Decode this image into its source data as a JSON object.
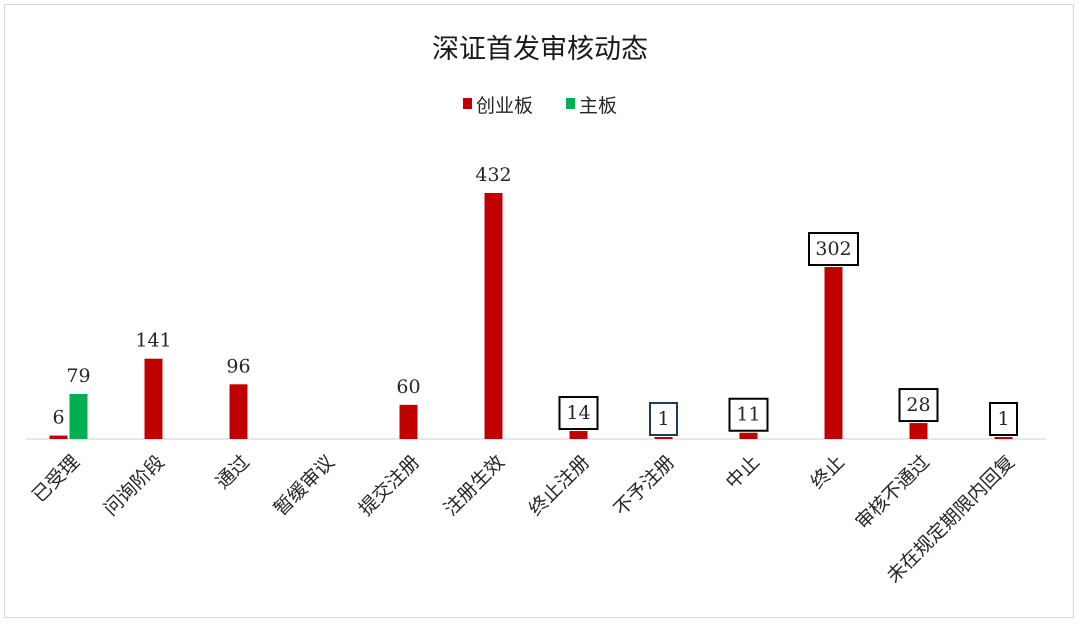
{
  "chart_data": {
    "type": "bar",
    "title": "深证首发审核动态",
    "categories": [
      "已受理",
      "问询阶段",
      "通过",
      "暂缓审议",
      "提交注册",
      "注册生效",
      "终止注册",
      "不予注册",
      "中止",
      "终止",
      "审核不通过",
      "未在规定期限内回复"
    ],
    "series": [
      {
        "name": "创业板",
        "color": "#c00000",
        "values": [
          6,
          141,
          96,
          null,
          60,
          432,
          14,
          1,
          11,
          302,
          28,
          1
        ]
      },
      {
        "name": "主板",
        "color": "#00b050",
        "values": [
          79,
          null,
          null,
          null,
          null,
          null,
          null,
          null,
          null,
          null,
          null,
          null
        ]
      }
    ],
    "boxed_labels": {
      "创业板": [
        false,
        false,
        false,
        false,
        false,
        false,
        true,
        true,
        true,
        true,
        true,
        true
      ]
    },
    "ylim": [
      0,
      432
    ],
    "grid": false,
    "legend": "top-center"
  }
}
